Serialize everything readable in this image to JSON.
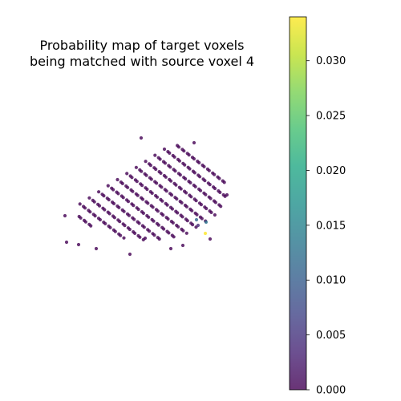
{
  "chart_data": {
    "type": "scatter",
    "title_lines": [
      "Probability map of target voxels",
      "being matched with source voxel 4"
    ],
    "xlabel": "",
    "ylabel": "",
    "axes_visible": false,
    "grid": false,
    "colormap": "viridis",
    "colorbar": {
      "orientation": "vertical",
      "placement": "right",
      "range": [
        0,
        0.034
      ],
      "ticks": [
        0.0,
        0.005,
        0.01,
        0.015,
        0.02,
        0.025,
        0.03
      ],
      "tick_labels": [
        "0.000",
        "0.005",
        "0.010",
        "0.015",
        "0.020",
        "0.025",
        "0.030"
      ]
    },
    "point_alpha": 0.8,
    "base_value": 0.0,
    "background_points_description": "~380 voxels with near-zero probability arranged in a tilted 3D lattice",
    "highlighted_points": [
      {
        "rank": 1,
        "value": 0.034
      },
      {
        "rank": 2,
        "value": 0.013
      },
      {
        "rank": 3,
        "value": 0.011
      },
      {
        "rank": 4,
        "value": 0.004
      }
    ]
  }
}
